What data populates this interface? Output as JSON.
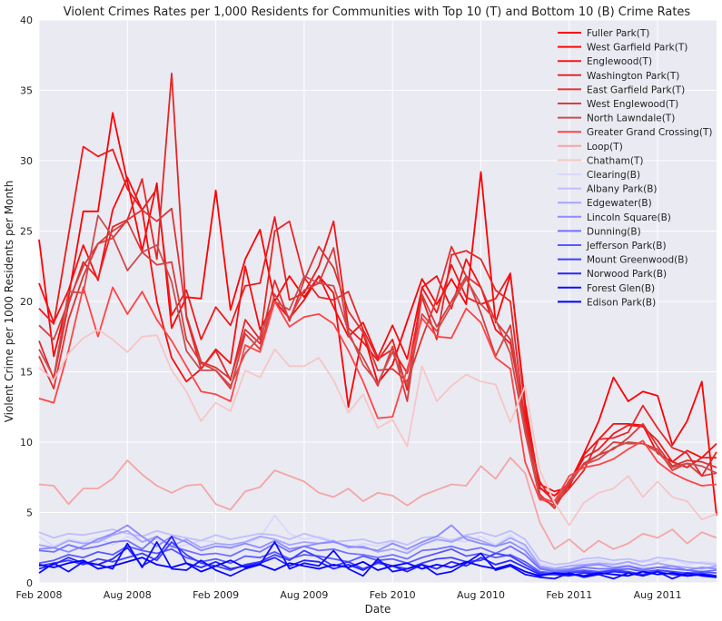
{
  "chart_data": {
    "type": "line",
    "title": "Violent Crimes Rates per 1,000 Residents for Communities with Top 10 (T) and Bottom 10 (B) Crime Rates",
    "xlabel": "Date",
    "ylabel": "Violent Crime per 1000 Residents per Month",
    "ylim": [
      0,
      40
    ],
    "yticks": [
      0,
      5,
      10,
      15,
      20,
      25,
      30,
      35,
      40
    ],
    "xticks": [
      "Feb 2008",
      "Aug 2008",
      "Feb 2009",
      "Aug 2009",
      "Feb 2010",
      "Aug 2010",
      "Feb 2011",
      "Aug 2011"
    ],
    "x": [
      "2008-02",
      "2008-03",
      "2008-04",
      "2008-05",
      "2008-06",
      "2008-07",
      "2008-08",
      "2008-09",
      "2008-10",
      "2008-11",
      "2008-12",
      "2009-01",
      "2009-02",
      "2009-03",
      "2009-04",
      "2009-05",
      "2009-06",
      "2009-07",
      "2009-08",
      "2009-09",
      "2009-10",
      "2009-11",
      "2009-12",
      "2010-01",
      "2010-02",
      "2010-03",
      "2010-04",
      "2010-05",
      "2010-06",
      "2010-07",
      "2010-08",
      "2010-09",
      "2010-10",
      "2010-11",
      "2010-12",
      "2011-01",
      "2011-02",
      "2011-03",
      "2011-04",
      "2011-05",
      "2011-06",
      "2011-07",
      "2011-08",
      "2011-09",
      "2011-10",
      "2011-11",
      "2011-12"
    ],
    "grid": true,
    "legend_position": "top-right",
    "series": [
      {
        "name": "Fuller Park(T)",
        "color": "#ff0000",
        "values": [
          24.4,
          16.1,
          20.3,
          26.4,
          26.4,
          33.4,
          28.5,
          23.6,
          28.4,
          18.1,
          20.3,
          20.2,
          27.9,
          19.4,
          23.0,
          25.1,
          20.0,
          21.8,
          20.3,
          21.8,
          20.6,
          12.5,
          17.8,
          14.2,
          15.5,
          18.6,
          21.6,
          19.8,
          21.6,
          19.8,
          29.2,
          18.5,
          21.9,
          12.8,
          6.7,
          6.2,
          7.1,
          9.2,
          11.5,
          14.6,
          12.9,
          13.6,
          13.3,
          9.8,
          11.5,
          14.3,
          4.8
        ]
      },
      {
        "name": "West Garfield Park(T)",
        "color": "#f70d0d",
        "values": [
          21.3,
          18.5,
          20.8,
          24.0,
          21.5,
          26.5,
          28.8,
          26.5,
          20.0,
          16.0,
          14.3,
          15.2,
          16.6,
          15.6,
          22.5,
          18.0,
          20.0,
          18.8,
          20.1,
          21.8,
          19.6,
          17.5,
          18.5,
          16.0,
          18.3,
          15.9,
          21.0,
          21.8,
          19.5,
          23.0,
          21.0,
          18.0,
          17.0,
          11.8,
          7.0,
          6.5,
          6.8,
          9.1,
          10.2,
          11.3,
          11.3,
          11.2,
          9.2,
          8.6,
          9.4,
          8.9,
          9.9
        ]
      },
      {
        "name": "Englewood(T)",
        "color": "#ee1a1a",
        "values": [
          19.5,
          18.4,
          24.7,
          31.0,
          30.3,
          30.8,
          28.0,
          26.5,
          28.0,
          19.0,
          20.8,
          17.3,
          19.6,
          18.3,
          21.1,
          21.3,
          26.0,
          20.1,
          20.6,
          22.5,
          25.7,
          18.1,
          17.1,
          15.8,
          17.3,
          13.7,
          21.0,
          19.2,
          22.6,
          20.3,
          19.8,
          20.2,
          22.0,
          12.3,
          6.8,
          5.8,
          7.0,
          8.9,
          9.5,
          10.6,
          11.2,
          11.1,
          10.1,
          8.6,
          8.2,
          8.9,
          8.9
        ]
      },
      {
        "name": "Washington Park(T)",
        "color": "#e62626",
        "values": [
          17.2,
          14.5,
          19.8,
          22.8,
          21.6,
          25.3,
          25.8,
          28.7,
          23.0,
          36.2,
          18.9,
          15.2,
          16.5,
          14.4,
          18.7,
          17.3,
          25.0,
          25.7,
          21.7,
          20.3,
          20.1,
          20.7,
          18.0,
          15.9,
          16.6,
          14.9,
          20.3,
          17.3,
          23.3,
          23.6,
          23.0,
          20.8,
          20.0,
          11.2,
          7.2,
          5.6,
          6.7,
          8.0,
          10.2,
          10.3,
          10.7,
          12.6,
          11.0,
          9.6,
          9.2,
          7.6,
          9.3
        ]
      },
      {
        "name": "East Garfield Park(T)",
        "color": "#dd3333",
        "values": [
          16.1,
          13.8,
          18.7,
          21.8,
          24.1,
          24.5,
          25.8,
          26.5,
          25.7,
          26.6,
          19.0,
          15.7,
          15.3,
          14.5,
          18.0,
          17.0,
          21.5,
          18.6,
          21.5,
          23.9,
          22.4,
          19.3,
          17.8,
          15.1,
          15.2,
          14.3,
          17.4,
          20.2,
          23.9,
          21.8,
          21.0,
          18.6,
          17.3,
          11.2,
          6.3,
          5.3,
          7.0,
          8.5,
          9.1,
          9.5,
          10.3,
          11.3,
          9.7,
          8.3,
          8.7,
          8.6,
          8.2
        ]
      },
      {
        "name": "West Englewood(T)",
        "color": "#d53f3f",
        "values": [
          18.3,
          17.3,
          20.0,
          22.5,
          24.1,
          25.0,
          25.7,
          23.5,
          22.6,
          22.8,
          17.3,
          15.6,
          15.1,
          13.8,
          17.7,
          16.6,
          20.5,
          18.8,
          20.8,
          21.3,
          23.8,
          17.6,
          16.0,
          14.0,
          16.8,
          12.9,
          20.5,
          18.2,
          20.0,
          21.8,
          19.2,
          16.1,
          18.3,
          10.7,
          6.0,
          5.5,
          7.3,
          8.4,
          9.1,
          10.0,
          9.9,
          9.9,
          9.5,
          8.0,
          8.5,
          7.6,
          7.8
        ]
      },
      {
        "name": "North Lawndale(T)",
        "color": "#cc4c4c",
        "values": [
          16.6,
          14.6,
          20.7,
          20.6,
          26.1,
          24.6,
          22.2,
          23.5,
          24.0,
          21.4,
          16.5,
          15.1,
          15.1,
          14.0,
          16.3,
          17.5,
          20.0,
          19.4,
          21.8,
          21.3,
          21.1,
          17.9,
          15.5,
          14.2,
          16.4,
          14.0,
          19.1,
          17.9,
          19.7,
          21.6,
          19.8,
          18.7,
          16.3,
          10.7,
          6.1,
          5.7,
          7.2,
          8.4,
          8.8,
          9.6,
          10.0,
          9.9,
          9.3,
          8.2,
          8.5,
          8.3,
          7.8
        ]
      },
      {
        "name": "Greater Grand Crossing(T)",
        "color": "#ff4444",
        "values": [
          13.1,
          12.8,
          16.5,
          21.0,
          17.5,
          21.0,
          19.1,
          20.7,
          18.7,
          17.2,
          15.4,
          13.6,
          13.4,
          12.9,
          16.9,
          16.4,
          20.0,
          18.2,
          18.9,
          19.1,
          18.4,
          16.5,
          14.3,
          11.7,
          11.8,
          15.2,
          18.8,
          17.5,
          17.4,
          19.5,
          18.5,
          16.0,
          15.2,
          8.6,
          5.9,
          5.8,
          7.6,
          8.2,
          8.4,
          8.8,
          9.5,
          10.1,
          8.6,
          7.8,
          7.3,
          6.9,
          7.0
        ]
      },
      {
        "name": "Loop(T)",
        "color": "#f4a5a5",
        "values": [
          7.0,
          6.9,
          5.6,
          6.7,
          6.7,
          7.4,
          8.7,
          7.7,
          6.9,
          6.4,
          6.9,
          7.0,
          5.6,
          5.2,
          6.5,
          6.8,
          8.0,
          7.6,
          7.2,
          6.4,
          6.1,
          6.7,
          5.8,
          6.4,
          6.2,
          5.5,
          6.2,
          6.6,
          7.0,
          6.9,
          8.3,
          7.4,
          8.9,
          7.8,
          4.3,
          2.4,
          3.1,
          2.2,
          3.0,
          2.4,
          2.8,
          3.5,
          3.2,
          3.8,
          2.8,
          3.6,
          3.2
        ]
      },
      {
        "name": "Chatham(T)",
        "color": "#f6c6c6",
        "values": [
          15.3,
          14.4,
          16.3,
          17.4,
          18.0,
          17.3,
          16.4,
          17.5,
          17.6,
          15.1,
          13.6,
          11.5,
          12.8,
          12.2,
          15.1,
          14.6,
          16.6,
          15.4,
          15.4,
          16.0,
          14.4,
          12.1,
          13.4,
          11.0,
          11.6,
          9.7,
          15.4,
          12.9,
          14.0,
          14.8,
          14.3,
          14.1,
          11.4,
          14.0,
          8.0,
          5.7,
          4.1,
          5.7,
          6.4,
          6.7,
          7.6,
          6.1,
          7.2,
          6.1,
          5.8,
          4.5,
          4.9
        ]
      },
      {
        "name": "Clearing(B)",
        "color": "#d8d8ff",
        "values": [
          3.3,
          2.6,
          3.1,
          2.9,
          3.2,
          2.7,
          3.3,
          2.9,
          3.1,
          2.5,
          2.7,
          3.0,
          2.9,
          2.4,
          2.8,
          3.2,
          4.8,
          3.5,
          3.1,
          3.3,
          3.0,
          2.5,
          2.8,
          2.6,
          2.9,
          2.2,
          2.8,
          3.0,
          3.1,
          2.9,
          3.3,
          2.7,
          3.4,
          2.5,
          1.4,
          1.1,
          1.2,
          1.5,
          1.6,
          1.4,
          1.2,
          1.6,
          1.5,
          1.7,
          1.3,
          1.5,
          1.4
        ]
      },
      {
        "name": "Albany Park(B)",
        "color": "#bfbfff",
        "values": [
          3.6,
          3.2,
          3.5,
          3.4,
          3.6,
          3.8,
          3.5,
          3.3,
          3.7,
          3.4,
          3.2,
          3.0,
          3.4,
          3.1,
          3.3,
          3.5,
          3.4,
          3.1,
          3.5,
          3.2,
          2.9,
          3.0,
          3.1,
          2.8,
          3.0,
          2.7,
          3.2,
          3.3,
          3.0,
          3.4,
          3.6,
          3.3,
          3.7,
          3.1,
          1.6,
          1.3,
          1.4,
          1.7,
          1.8,
          1.6,
          1.7,
          1.5,
          1.8,
          1.7,
          1.5,
          1.4,
          1.3
        ]
      },
      {
        "name": "Edgewater(B)",
        "color": "#a5a5ff",
        "values": [
          2.7,
          2.5,
          3.0,
          2.8,
          2.9,
          3.4,
          3.7,
          2.9,
          3.3,
          2.6,
          3.1,
          2.5,
          2.8,
          2.7,
          2.9,
          3.3,
          3.1,
          2.7,
          2.9,
          2.8,
          3.0,
          2.5,
          2.6,
          2.2,
          2.4,
          2.1,
          2.7,
          3.1,
          2.9,
          3.3,
          3.0,
          2.6,
          3.2,
          2.7,
          1.2,
          1.0,
          1.2,
          1.3,
          1.4,
          1.3,
          1.5,
          1.2,
          1.4,
          1.2,
          1.1,
          1.0,
          1.2
        ]
      },
      {
        "name": "Lincoln Square(B)",
        "color": "#8c8cff",
        "values": [
          2.4,
          2.5,
          2.2,
          2.6,
          3.1,
          3.5,
          4.1,
          3.3,
          2.6,
          3.3,
          2.9,
          2.3,
          2.6,
          2.5,
          2.8,
          2.5,
          3.0,
          2.4,
          2.6,
          2.8,
          2.9,
          2.6,
          2.5,
          2.3,
          2.8,
          2.4,
          2.9,
          3.3,
          4.1,
          3.1,
          2.8,
          2.6,
          2.9,
          2.3,
          1.1,
          0.9,
          1.0,
          1.2,
          1.3,
          1.1,
          1.2,
          1.0,
          1.1,
          1.2,
          0.9,
          1.1,
          1.0
        ]
      },
      {
        "name": "Dunning(B)",
        "color": "#7272ff",
        "values": [
          2.3,
          2.2,
          2.7,
          2.4,
          2.6,
          2.9,
          3.0,
          2.4,
          3.3,
          2.6,
          2.3,
          2.0,
          2.1,
          1.9,
          2.4,
          2.2,
          2.8,
          2.2,
          2.6,
          2.3,
          2.4,
          2.1,
          2.0,
          1.8,
          2.0,
          1.7,
          2.3,
          2.4,
          2.6,
          2.3,
          2.5,
          2.1,
          2.6,
          2.0,
          1.0,
          0.8,
          0.9,
          1.1,
          1.0,
          1.0,
          1.2,
          0.9,
          1.1,
          1.0,
          0.9,
          0.8,
          0.9
        ]
      },
      {
        "name": "Jefferson Park(B)",
        "color": "#5959ff",
        "values": [
          1.4,
          1.6,
          2.0,
          1.8,
          2.2,
          2.0,
          2.6,
          2.3,
          2.1,
          2.4,
          1.8,
          1.5,
          1.7,
          1.4,
          1.9,
          1.8,
          2.2,
          1.7,
          2.0,
          1.9,
          1.7,
          1.5,
          1.9,
          1.6,
          1.7,
          1.4,
          1.8,
          2.1,
          2.4,
          1.9,
          2.1,
          1.8,
          2.0,
          1.5,
          0.8,
          0.7,
          0.8,
          0.9,
          0.8,
          0.9,
          1.0,
          0.8,
          0.9,
          0.8,
          0.7,
          0.8,
          0.7
        ]
      },
      {
        "name": "Mount Greenwood(B)",
        "color": "#3f3fff",
        "values": [
          1.2,
          1.4,
          1.6,
          1.3,
          1.7,
          1.5,
          1.8,
          2.1,
          1.6,
          2.9,
          2.0,
          1.4,
          1.2,
          0.9,
          1.3,
          1.5,
          2.0,
          1.6,
          2.3,
          1.8,
          1.2,
          1.5,
          1.0,
          1.4,
          1.2,
          1.0,
          1.4,
          1.7,
          1.8,
          1.5,
          1.6,
          2.1,
          1.9,
          1.3,
          0.7,
          0.6,
          0.7,
          0.8,
          0.7,
          0.9,
          0.8,
          0.6,
          0.9,
          0.8,
          0.6,
          0.7,
          0.5
        ]
      },
      {
        "name": "Norwood Park(B)",
        "color": "#2626ff",
        "values": [
          1.0,
          1.3,
          1.8,
          1.4,
          1.3,
          1.7,
          2.5,
          1.2,
          1.8,
          3.3,
          1.4,
          1.1,
          1.5,
          1.0,
          1.2,
          1.4,
          1.8,
          1.2,
          1.6,
          1.5,
          1.0,
          1.3,
          0.9,
          1.5,
          1.2,
          0.8,
          1.3,
          1.0,
          1.5,
          1.2,
          1.8,
          1.3,
          1.6,
          1.1,
          0.6,
          0.6,
          0.5,
          0.7,
          0.6,
          0.8,
          0.7,
          0.5,
          0.8,
          0.6,
          0.5,
          0.6,
          0.5
        ]
      },
      {
        "name": "Forest Glen(B)",
        "color": "#0d0dff",
        "values": [
          0.7,
          1.4,
          0.8,
          1.5,
          1.3,
          1.0,
          2.8,
          1.1,
          2.9,
          1.0,
          0.9,
          1.6,
          0.9,
          0.5,
          1.0,
          1.3,
          2.9,
          1.0,
          1.4,
          1.2,
          2.3,
          1.0,
          0.5,
          1.7,
          0.8,
          1.0,
          1.3,
          0.6,
          0.8,
          1.4,
          2.1,
          0.9,
          1.2,
          0.6,
          0.4,
          0.3,
          0.7,
          0.4,
          0.6,
          0.3,
          0.7,
          0.5,
          0.8,
          0.3,
          0.7,
          0.5,
          0.4
        ]
      },
      {
        "name": "Edison Park(B)",
        "color": "#0000ff",
        "values": [
          1.3,
          1.1,
          1.4,
          1.6,
          1.0,
          1.2,
          1.5,
          1.8,
          1.3,
          1.1,
          1.4,
          0.8,
          1.2,
          1.6,
          1.1,
          1.3,
          0.9,
          1.4,
          1.2,
          1.0,
          1.3,
          1.1,
          1.5,
          0.9,
          1.2,
          1.4,
          1.0,
          1.3,
          1.1,
          1.5,
          1.2,
          1.0,
          1.3,
          0.8,
          0.5,
          0.7,
          0.6,
          0.5,
          0.7,
          0.6,
          0.5,
          0.8,
          0.6,
          0.7,
          0.5,
          0.6,
          0.4
        ]
      }
    ]
  }
}
